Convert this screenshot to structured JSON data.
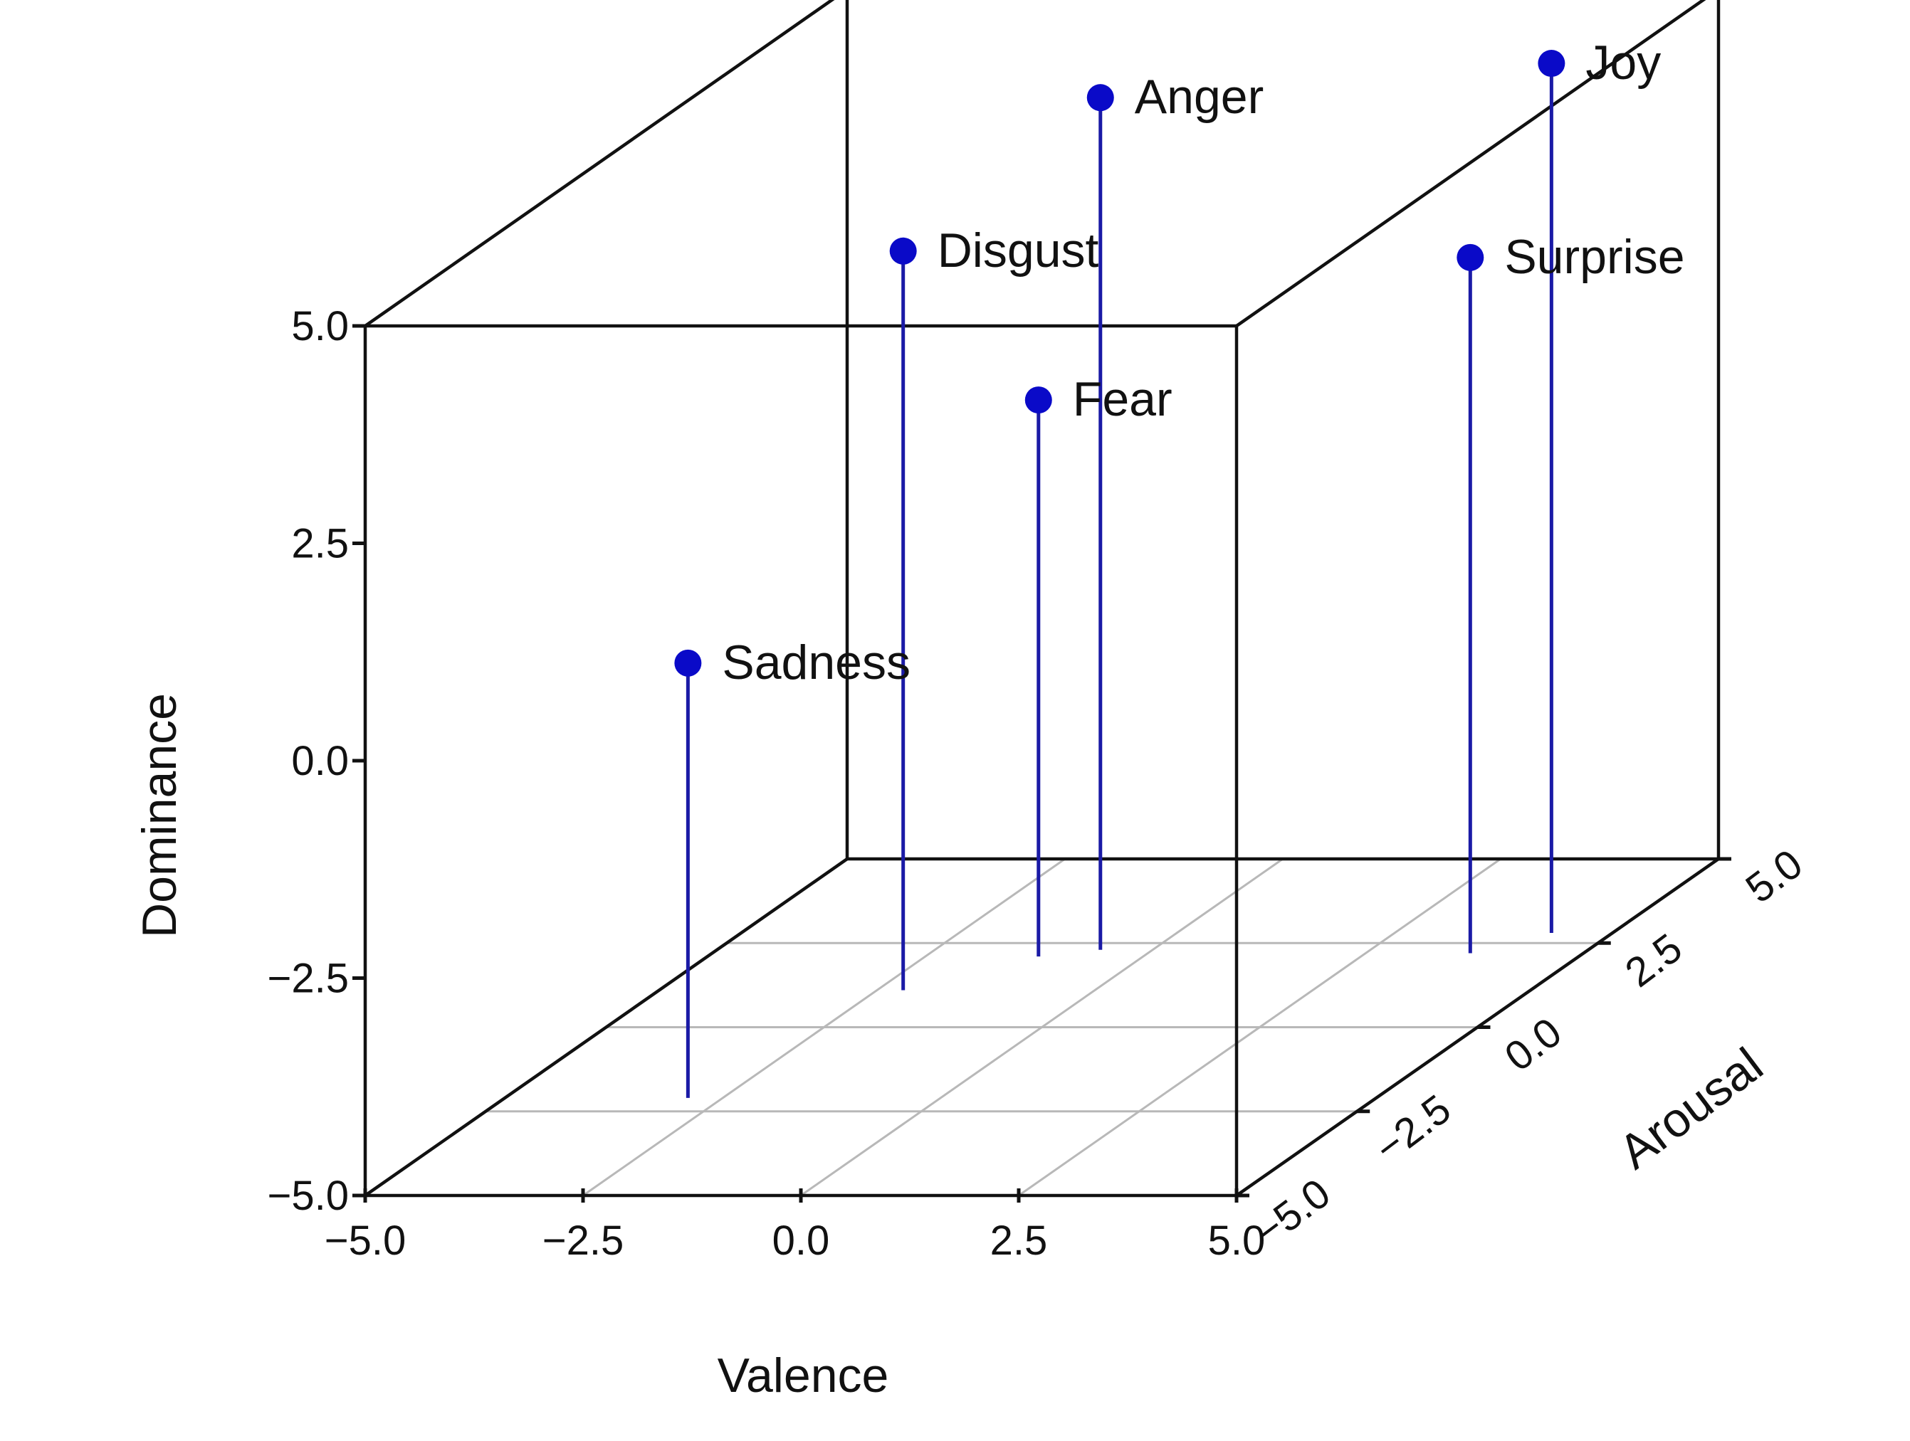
{
  "chart_data": {
    "type": "scatter",
    "projection": "3d",
    "xlabel": "Valence",
    "ylabel": "Arousal",
    "zlabel": "Dominance",
    "xlim": [
      -5,
      5
    ],
    "ylim": [
      -5,
      5
    ],
    "zlim": [
      -5,
      5
    ],
    "xticks": [
      "−5.0",
      "−2.5",
      "0.0",
      "2.5",
      "5.0"
    ],
    "yticks": [
      "−5.0",
      "−2.5",
      "0.0",
      "2.5",
      "5.0"
    ],
    "zticks": [
      "−5.0",
      "−2.5",
      "0.0",
      "2.5",
      "5.0"
    ],
    "grid": "floor",
    "marker_color": "#0a0ac8",
    "stem_color": "#1a1aa6",
    "points": [
      {
        "label": "Sadness",
        "x": -2.9,
        "y": -2.1,
        "z": 0.0
      },
      {
        "label": "Disgust",
        "x": -2.2,
        "y": 1.1,
        "z": 3.5
      },
      {
        "label": "Fear",
        "x": -1.2,
        "y": 2.1,
        "z": 1.4
      },
      {
        "label": "Anger",
        "x": -0.6,
        "y": 2.3,
        "z": 4.8
      },
      {
        "label": "Surprise",
        "x": 3.7,
        "y": 2.2,
        "z": 3.0
      },
      {
        "label": "Joy",
        "x": 4.3,
        "y": 2.8,
        "z": 5.0
      }
    ]
  }
}
